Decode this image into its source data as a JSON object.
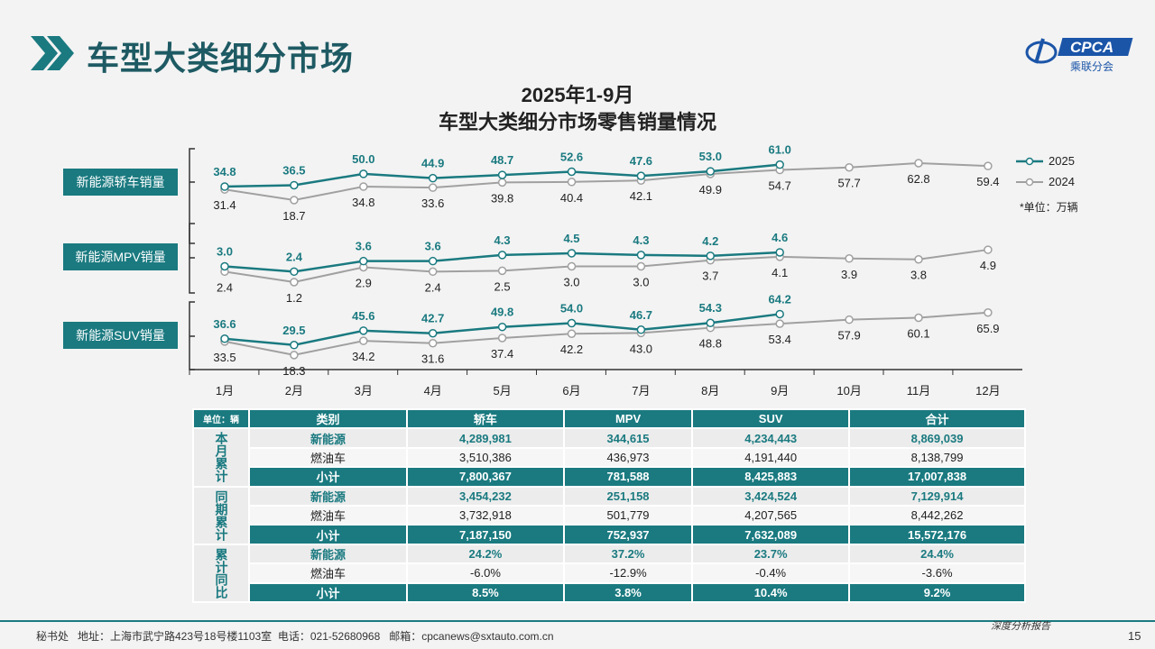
{
  "header": {
    "title": "车型大类细分市场",
    "logo_text": "CPCA",
    "logo_sub": "乘联分会",
    "logo_mark": "CADA"
  },
  "chart_data": {
    "type": "line",
    "title": "2025年1-9月",
    "subtitle": "车型大类细分市场零售销量情况",
    "unit": "*单位：万辆",
    "categories": [
      "1月",
      "2月",
      "3月",
      "4月",
      "5月",
      "6月",
      "7月",
      "8月",
      "9月",
      "10月",
      "11月",
      "12月"
    ],
    "legend": [
      "2025",
      "2024"
    ],
    "colors": {
      "2025": "#1a7a80",
      "2024": "#a0a0a0"
    },
    "panels": [
      {
        "label": "新能源轿车销量",
        "series": [
          {
            "name": "2025",
            "values": [
              34.8,
              36.5,
              50.0,
              44.9,
              48.7,
              52.6,
              47.6,
              53.0,
              61.0
            ]
          },
          {
            "name": "2024",
            "values": [
              31.4,
              18.7,
              34.8,
              33.6,
              39.8,
              40.4,
              42.1,
              49.9,
              54.7,
              57.7,
              62.8,
              59.4
            ]
          }
        ]
      },
      {
        "label": "新能源MPV销量",
        "series": [
          {
            "name": "2025",
            "values": [
              3.0,
              2.4,
              3.6,
              3.6,
              4.3,
              4.5,
              4.3,
              4.2,
              4.6
            ]
          },
          {
            "name": "2024",
            "values": [
              2.4,
              1.2,
              2.9,
              2.4,
              2.5,
              3.0,
              3.0,
              3.7,
              4.1,
              3.9,
              3.8,
              4.9
            ]
          }
        ]
      },
      {
        "label": "新能源SUV销量",
        "series": [
          {
            "name": "2025",
            "values": [
              36.6,
              29.5,
              45.6,
              42.7,
              49.8,
              54.0,
              46.7,
              54.3,
              64.2
            ]
          },
          {
            "name": "2024",
            "values": [
              33.5,
              18.3,
              34.2,
              31.6,
              37.4,
              42.2,
              43.0,
              48.8,
              53.4,
              57.9,
              60.1,
              65.9
            ]
          }
        ]
      }
    ]
  },
  "table": {
    "headers": [
      "单位：辆",
      "类别",
      "轿车",
      "MPV",
      "SUV",
      "合计"
    ],
    "groups": [
      {
        "label": "本月累计",
        "rows": [
          {
            "type": "新能源",
            "values": [
              "4,289,981",
              "344,615",
              "4,234,443",
              "8,869,039"
            ]
          },
          {
            "type": "燃油车",
            "values": [
              "3,510,386",
              "436,973",
              "4,191,440",
              "8,138,799"
            ]
          },
          {
            "type": "小计",
            "values": [
              "7,800,367",
              "781,588",
              "8,425,883",
              "17,007,838"
            ]
          }
        ]
      },
      {
        "label": "同期累计",
        "rows": [
          {
            "type": "新能源",
            "values": [
              "3,454,232",
              "251,158",
              "3,424,524",
              "7,129,914"
            ]
          },
          {
            "type": "燃油车",
            "values": [
              "3,732,918",
              "501,779",
              "4,207,565",
              "8,442,262"
            ]
          },
          {
            "type": "小计",
            "values": [
              "7,187,150",
              "752,937",
              "7,632,089",
              "15,572,176"
            ]
          }
        ]
      },
      {
        "label": "累计同比",
        "rows": [
          {
            "type": "新能源",
            "values": [
              "24.2%",
              "37.2%",
              "23.7%",
              "24.4%"
            ]
          },
          {
            "type": "燃油车",
            "values": [
              "-6.0%",
              "-12.9%",
              "-0.4%",
              "-3.6%"
            ]
          },
          {
            "type": "小计",
            "values": [
              "8.5%",
              "3.8%",
              "10.4%",
              "9.2%"
            ]
          }
        ]
      }
    ]
  },
  "footer": {
    "text": "秘书处   地址：上海市武宁路423号18号楼1103室  电话：021-52680968   邮箱：cpcanews@sxtauto.com.cn",
    "report": "深度分析报告",
    "page": "15"
  }
}
